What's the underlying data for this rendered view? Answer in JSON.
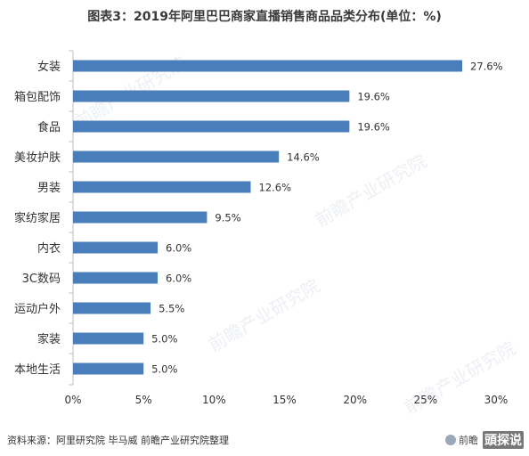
{
  "title": "图表3：2019年阿里巴巴商家直播销售商品品类分布(单位：%)",
  "source": "资料来源：阿里研究院 毕马威 前瞻产业研究院整理",
  "brand": "前瞻",
  "watermark": "前瞻产业研究院",
  "stamp": "頭探说",
  "chart_data": {
    "type": "bar",
    "orientation": "horizontal",
    "categories": [
      "女装",
      "箱包配饰",
      "食品",
      "美妆护肤",
      "男装",
      "家纺家居",
      "内衣",
      "3C数码",
      "运动户外",
      "家装",
      "本地生活"
    ],
    "values": [
      27.6,
      19.6,
      19.6,
      14.6,
      12.6,
      9.5,
      6.0,
      6.0,
      5.5,
      5.0,
      5.0
    ],
    "value_labels": [
      "27.6%",
      "19.6%",
      "19.6%",
      "14.6%",
      "12.6%",
      "9.5%",
      "6.0%",
      "6.0%",
      "5.5%",
      "5.0%",
      "5.0%"
    ],
    "xlim": [
      0,
      30
    ],
    "xticks": [
      "0%",
      "5%",
      "10%",
      "15%",
      "20%",
      "25%",
      "30%"
    ],
    "bar_color": "#4a7ebb",
    "grid": false
  }
}
